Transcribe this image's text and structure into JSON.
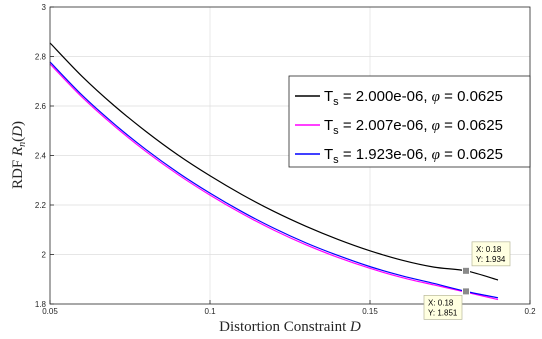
{
  "chart_data": {
    "type": "line",
    "xlabel": "Distortion Constraint D",
    "ylabel": "RDF R_n(D)",
    "xlim": [
      0.05,
      0.2
    ],
    "ylim": [
      1.8,
      3.0
    ],
    "xticks": [
      0.05,
      0.1,
      0.15,
      0.2
    ],
    "xtick_labels": [
      "0.05",
      "0.1",
      "0.15",
      "0.2"
    ],
    "yticks": [
      1.8,
      2.0,
      2.2,
      2.4,
      2.6,
      2.8,
      3.0
    ],
    "ytick_labels": [
      "1.8",
      "2",
      "2.2",
      "2.4",
      "2.6",
      "2.8",
      "3"
    ],
    "grid": true,
    "legend_position": "center-right",
    "series": [
      {
        "name": "T_s = 2.000e-06, φ = 0.0625",
        "color": "#000000",
        "x": [
          0.05,
          0.06,
          0.07,
          0.08,
          0.09,
          0.1,
          0.11,
          0.12,
          0.13,
          0.14,
          0.15,
          0.16,
          0.17,
          0.18,
          0.19
        ],
        "y": [
          2.855,
          2.72,
          2.602,
          2.497,
          2.402,
          2.318,
          2.242,
          2.174,
          2.114,
          2.061,
          2.015,
          1.977,
          1.949,
          1.934,
          1.897
        ]
      },
      {
        "name": "T_s = 2.007e-06, φ = 0.0625",
        "color": "#ff00ff",
        "x": [
          0.05,
          0.06,
          0.07,
          0.08,
          0.09,
          0.1,
          0.11,
          0.12,
          0.13,
          0.14,
          0.15,
          0.16,
          0.17,
          0.18,
          0.19
        ],
        "y": [
          2.77,
          2.636,
          2.52,
          2.416,
          2.323,
          2.24,
          2.165,
          2.098,
          2.039,
          1.988,
          1.944,
          1.907,
          1.877,
          1.848,
          1.818
        ]
      },
      {
        "name": "T_s = 1.923e-06, φ = 0.0625",
        "color": "#0000ff",
        "x": [
          0.05,
          0.06,
          0.07,
          0.08,
          0.09,
          0.1,
          0.11,
          0.12,
          0.13,
          0.14,
          0.15,
          0.16,
          0.17,
          0.18,
          0.19
        ],
        "y": [
          2.778,
          2.644,
          2.528,
          2.424,
          2.331,
          2.248,
          2.173,
          2.106,
          2.047,
          1.996,
          1.951,
          1.914,
          1.883,
          1.851,
          1.825
        ]
      }
    ],
    "annotations": [
      {
        "x": 0.18,
        "y": 1.934,
        "lines": [
          "X: 0.18",
          "Y: 1.934"
        ],
        "box": "above-right"
      },
      {
        "x": 0.18,
        "y": 1.851,
        "lines": [
          "X: 0.18",
          "Y: 1.851"
        ],
        "box": "below-left"
      }
    ]
  }
}
